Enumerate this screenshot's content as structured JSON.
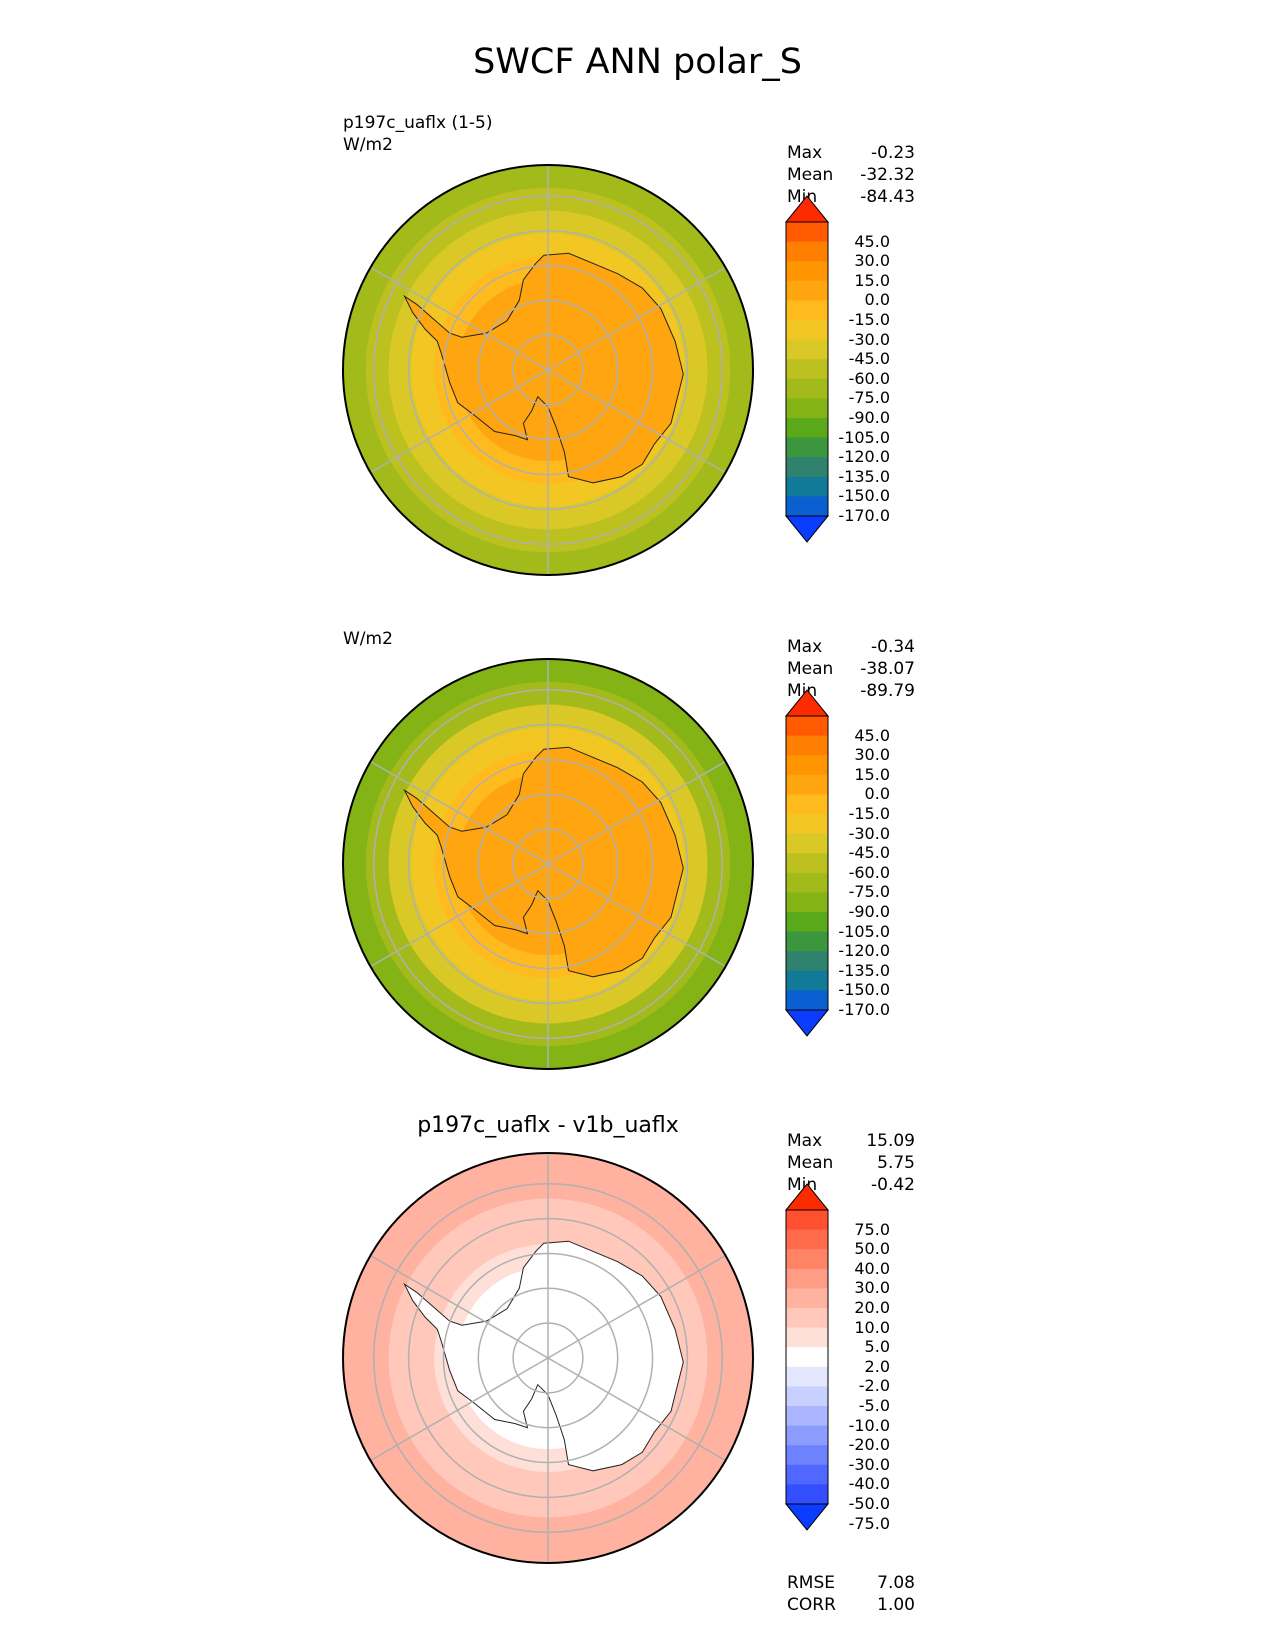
{
  "title": "SWCF ANN polar_S",
  "panels": [
    {
      "id": "test",
      "label_line1": "p197c_uaflx (1-5)",
      "label_line2": "W/m2",
      "center_title": "",
      "stats": [
        {
          "name": "Max",
          "value": "-0.23"
        },
        {
          "name": "Mean",
          "value": "-32.32"
        },
        {
          "name": "Min",
          "value": "-84.43"
        }
      ],
      "colorbar": {
        "ticks": [
          "45.0",
          "30.0",
          "15.0",
          "0.0",
          "-15.0",
          "-30.0",
          "-45.0",
          "-60.0",
          "-75.0",
          "-90.0",
          "-105.0",
          "-120.0",
          "-135.0",
          "-150.0",
          "-170.0"
        ],
        "colors": [
          "#ff2b00",
          "#ff5a00",
          "#ff7f00",
          "#ff9500",
          "#ffa510",
          "#ffbb1e",
          "#f2c623",
          "#d9c826",
          "#bcc11f",
          "#a2bb1a",
          "#84b316",
          "#5aa91a",
          "#3b963e",
          "#2f826e",
          "#117a98",
          "#0a5fd1",
          "#0a3dff"
        ],
        "extend_max_color": "#ff2b00",
        "extend_min_color": "#0a3dff"
      },
      "field": {
        "ring_colors": [
          "#ffa510",
          "#ffa510",
          "#ffa510",
          "#ffa510",
          "#ffbb1e",
          "#f2c623",
          "#d9c826",
          "#bcc11f",
          "#a2bb1a"
        ],
        "land_color": "#ffa510"
      },
      "extra_stats": []
    },
    {
      "id": "reference",
      "label_line1": "",
      "label_line2": "W/m2",
      "center_title": "",
      "stats": [
        {
          "name": "Max",
          "value": "-0.34"
        },
        {
          "name": "Mean",
          "value": "-38.07"
        },
        {
          "name": "Min",
          "value": "-89.79"
        }
      ],
      "colorbar": {
        "ticks": [
          "45.0",
          "30.0",
          "15.0",
          "0.0",
          "-15.0",
          "-30.0",
          "-45.0",
          "-60.0",
          "-75.0",
          "-90.0",
          "-105.0",
          "-120.0",
          "-135.0",
          "-150.0",
          "-170.0"
        ],
        "colors": [
          "#ff2b00",
          "#ff5a00",
          "#ff7f00",
          "#ff9500",
          "#ffa510",
          "#ffbb1e",
          "#f2c623",
          "#d9c826",
          "#bcc11f",
          "#a2bb1a",
          "#84b316",
          "#5aa91a",
          "#3b963e",
          "#2f826e",
          "#117a98",
          "#0a5fd1",
          "#0a3dff"
        ],
        "extend_max_color": "#ff2b00",
        "extend_min_color": "#0a3dff"
      },
      "field": {
        "ring_colors": [
          "#ffa510",
          "#ffa510",
          "#ffa510",
          "#ffa510",
          "#ffbb1e",
          "#f2c623",
          "#d9c826",
          "#a2bb1a",
          "#84b316"
        ],
        "land_color": "#ffa510"
      },
      "extra_stats": []
    },
    {
      "id": "difference",
      "label_line1": "",
      "label_line2": "",
      "center_title": "p197c_uaflx - v1b_uaflx",
      "stats": [
        {
          "name": "Max",
          "value": "15.09"
        },
        {
          "name": "Mean",
          "value": "5.75"
        },
        {
          "name": "Min",
          "value": "-0.42"
        }
      ],
      "colorbar": {
        "ticks": [
          "75.0",
          "50.0",
          "40.0",
          "30.0",
          "20.0",
          "10.0",
          "5.0",
          "2.0",
          "-2.0",
          "-5.0",
          "-10.0",
          "-20.0",
          "-30.0",
          "-40.0",
          "-50.0",
          "-75.0"
        ],
        "colors": [
          "#ff2b00",
          "#ff5030",
          "#ff6a4d",
          "#ff8466",
          "#ff9c85",
          "#ffb2a0",
          "#ffc8bb",
          "#ffe0d8",
          "#ffffff",
          "#e4e8ff",
          "#c8d0ff",
          "#aab6ff",
          "#8c9cff",
          "#6e82ff",
          "#5068ff",
          "#324eff",
          "#0a3dff"
        ],
        "extend_max_color": "#ff2b00",
        "extend_min_color": "#0a3dff"
      },
      "field": {
        "ring_colors": [
          "#ffffff",
          "#ffffff",
          "#ffffff",
          "#ffffff",
          "#ffe0d8",
          "#ffc8bb",
          "#ffc8bb",
          "#ffb2a0",
          "#ffb2a0"
        ],
        "land_color": "#ffffff"
      },
      "extra_stats": [
        {
          "name": "RMSE",
          "value": "7.08"
        },
        {
          "name": "CORR",
          "value": "1.00"
        }
      ]
    }
  ]
}
